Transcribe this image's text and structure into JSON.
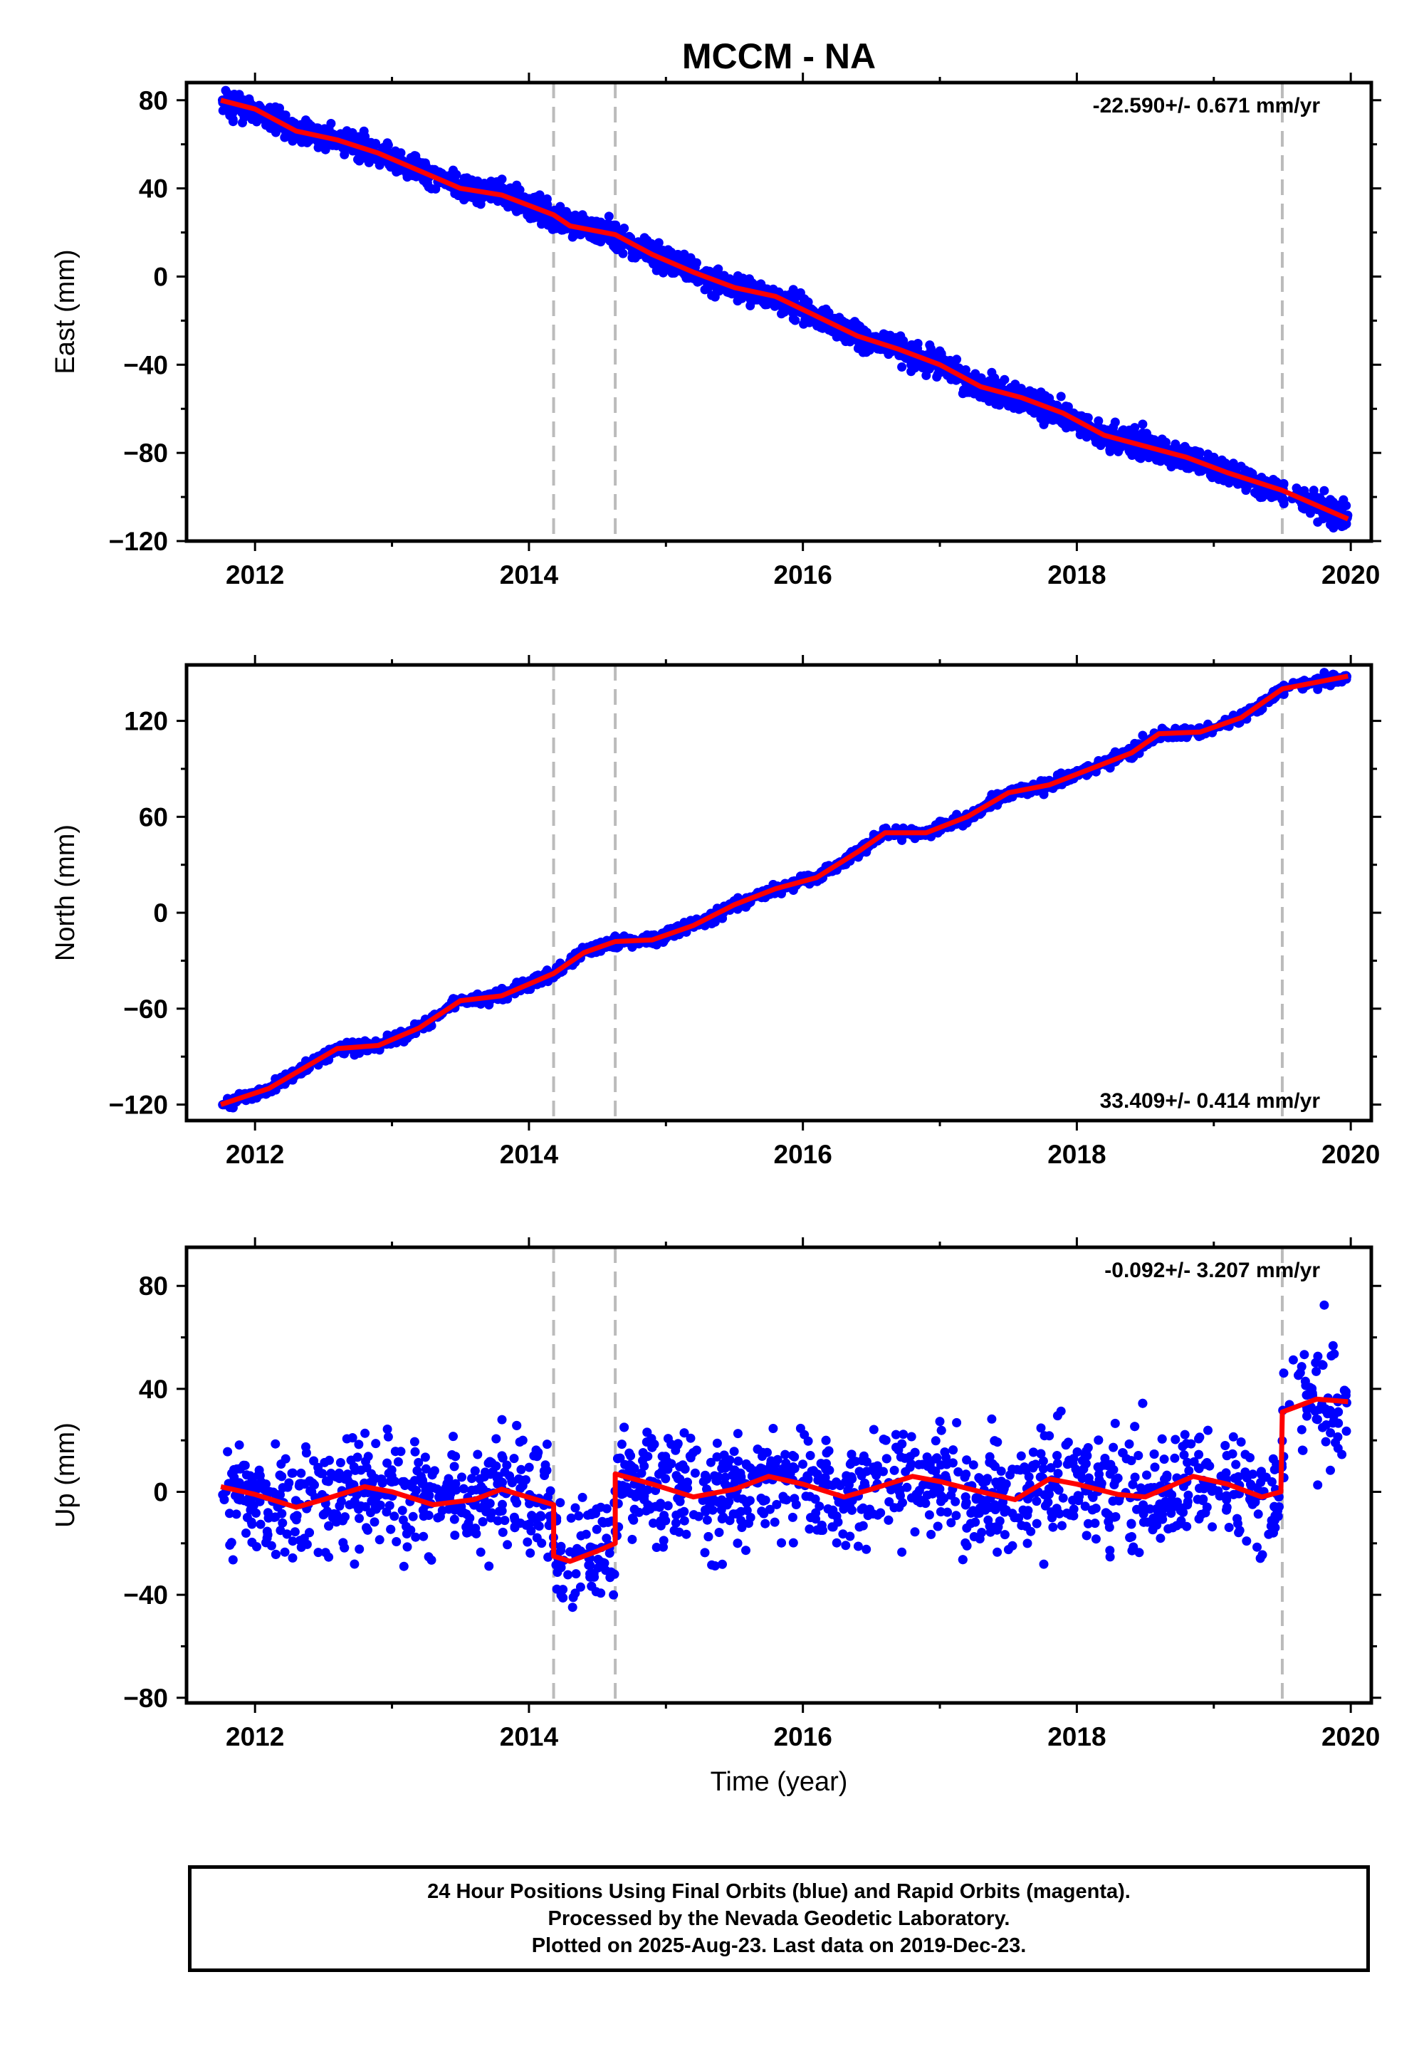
{
  "chart_data": {
    "type": "scatter",
    "title": "MCCM - NA",
    "xlabel": "Time (year)",
    "x_ticks": [
      "2012",
      "2014",
      "2016",
      "2018",
      "2020"
    ],
    "xlim": [
      2011.5,
      2020.15
    ],
    "data_span": [
      2011.75,
      2019.98
    ],
    "steps": [
      2014.18,
      2014.63,
      2019.5
    ],
    "series_colors": {
      "observations": "#0000ff",
      "model": "#ff0000",
      "steps": "#bbbbbb"
    },
    "panels": [
      {
        "id": "east",
        "ylabel": "East (mm)",
        "ylim": [
          -120,
          88
        ],
        "y_ticks": [
          "80",
          "40",
          "0",
          "−40",
          "−80",
          "−120"
        ],
        "y_tick_values": [
          80,
          40,
          0,
          -40,
          -80,
          -120
        ],
        "rate_label": "-22.590+/- 0.671 mm/yr",
        "rate_position": "top-right",
        "model": [
          [
            2011.75,
            80
          ],
          [
            2012,
            76
          ],
          [
            2012.3,
            66
          ],
          [
            2012.6,
            62
          ],
          [
            2012.9,
            56
          ],
          [
            2013.2,
            48
          ],
          [
            2013.5,
            40
          ],
          [
            2013.8,
            37
          ],
          [
            2014.18,
            28
          ],
          [
            2014.3,
            23
          ],
          [
            2014.63,
            19
          ],
          [
            2014.9,
            10
          ],
          [
            2015.2,
            2
          ],
          [
            2015.5,
            -5
          ],
          [
            2015.8,
            -9
          ],
          [
            2016.1,
            -18
          ],
          [
            2016.4,
            -27
          ],
          [
            2016.7,
            -33
          ],
          [
            2017.0,
            -40
          ],
          [
            2017.3,
            -50
          ],
          [
            2017.6,
            -55
          ],
          [
            2017.9,
            -62
          ],
          [
            2018.2,
            -72
          ],
          [
            2018.5,
            -77
          ],
          [
            2018.8,
            -82
          ],
          [
            2019.1,
            -89
          ],
          [
            2019.5,
            -97
          ],
          [
            2019.98,
            -110
          ]
        ],
        "scatter_sd": 4
      },
      {
        "id": "north",
        "ylabel": "North (mm)",
        "ylim": [
          -130,
          155
        ],
        "y_ticks": [
          "120",
          "60",
          "0",
          "−60",
          "−120"
        ],
        "y_tick_values": [
          120,
          60,
          0,
          -60,
          -120
        ],
        "rate_label": "33.409+/- 0.414 mm/yr",
        "rate_position": "bottom-right",
        "model": [
          [
            2011.75,
            -120
          ],
          [
            2012.1,
            -110
          ],
          [
            2012.4,
            -95
          ],
          [
            2012.6,
            -85
          ],
          [
            2012.9,
            -83
          ],
          [
            2013.2,
            -72
          ],
          [
            2013.5,
            -55
          ],
          [
            2013.8,
            -52
          ],
          [
            2014.18,
            -38
          ],
          [
            2014.4,
            -25
          ],
          [
            2014.63,
            -18
          ],
          [
            2014.9,
            -17
          ],
          [
            2015.2,
            -8
          ],
          [
            2015.5,
            5
          ],
          [
            2015.8,
            15
          ],
          [
            2016.1,
            22
          ],
          [
            2016.4,
            38
          ],
          [
            2016.6,
            50
          ],
          [
            2016.9,
            50
          ],
          [
            2017.2,
            60
          ],
          [
            2017.5,
            75
          ],
          [
            2017.8,
            80
          ],
          [
            2018.1,
            90
          ],
          [
            2018.4,
            100
          ],
          [
            2018.6,
            112
          ],
          [
            2018.9,
            113
          ],
          [
            2019.2,
            122
          ],
          [
            2019.5,
            140
          ],
          [
            2019.98,
            148
          ]
        ],
        "scatter_sd": 2.5
      },
      {
        "id": "up",
        "ylabel": "Up (mm)",
        "ylim": [
          -82,
          95
        ],
        "y_ticks": [
          "80",
          "40",
          "0",
          "−40",
          "−80"
        ],
        "y_tick_values": [
          80,
          40,
          0,
          -40,
          -80
        ],
        "rate_label": "-0.092+/- 3.207 mm/yr",
        "rate_position": "top-right",
        "model": [
          [
            2011.75,
            2
          ],
          [
            2012.0,
            -1
          ],
          [
            2012.3,
            -6
          ],
          [
            2012.5,
            -3
          ],
          [
            2012.8,
            2
          ],
          [
            2013.0,
            0
          ],
          [
            2013.3,
            -5
          ],
          [
            2013.6,
            -3
          ],
          [
            2013.8,
            1
          ],
          [
            2014.18,
            -5
          ],
          [
            2014.18,
            -25
          ],
          [
            2014.3,
            -27
          ],
          [
            2014.5,
            -23
          ],
          [
            2014.63,
            -20
          ],
          [
            2014.63,
            7
          ],
          [
            2014.9,
            3
          ],
          [
            2015.2,
            -2
          ],
          [
            2015.5,
            1
          ],
          [
            2015.75,
            6
          ],
          [
            2016.0,
            3
          ],
          [
            2016.3,
            -2
          ],
          [
            2016.5,
            1
          ],
          [
            2016.8,
            6
          ],
          [
            2017.0,
            4
          ],
          [
            2017.3,
            0
          ],
          [
            2017.55,
            -3
          ],
          [
            2017.8,
            5
          ],
          [
            2018.0,
            3
          ],
          [
            2018.3,
            -1
          ],
          [
            2018.5,
            -2
          ],
          [
            2018.85,
            6
          ],
          [
            2019.1,
            3
          ],
          [
            2019.35,
            -2
          ],
          [
            2019.49,
            0
          ],
          [
            2019.5,
            31
          ],
          [
            2019.75,
            36
          ],
          [
            2019.98,
            35
          ]
        ],
        "scatter_sd": 15
      }
    ]
  },
  "footer": {
    "line1": "24 Hour Positions Using Final Orbits (blue) and Rapid Orbits (magenta).",
    "line2": "Processed by the Nevada Geodetic Laboratory.",
    "line3": "Plotted on 2025-Aug-23. Last data on 2019-Dec-23."
  }
}
